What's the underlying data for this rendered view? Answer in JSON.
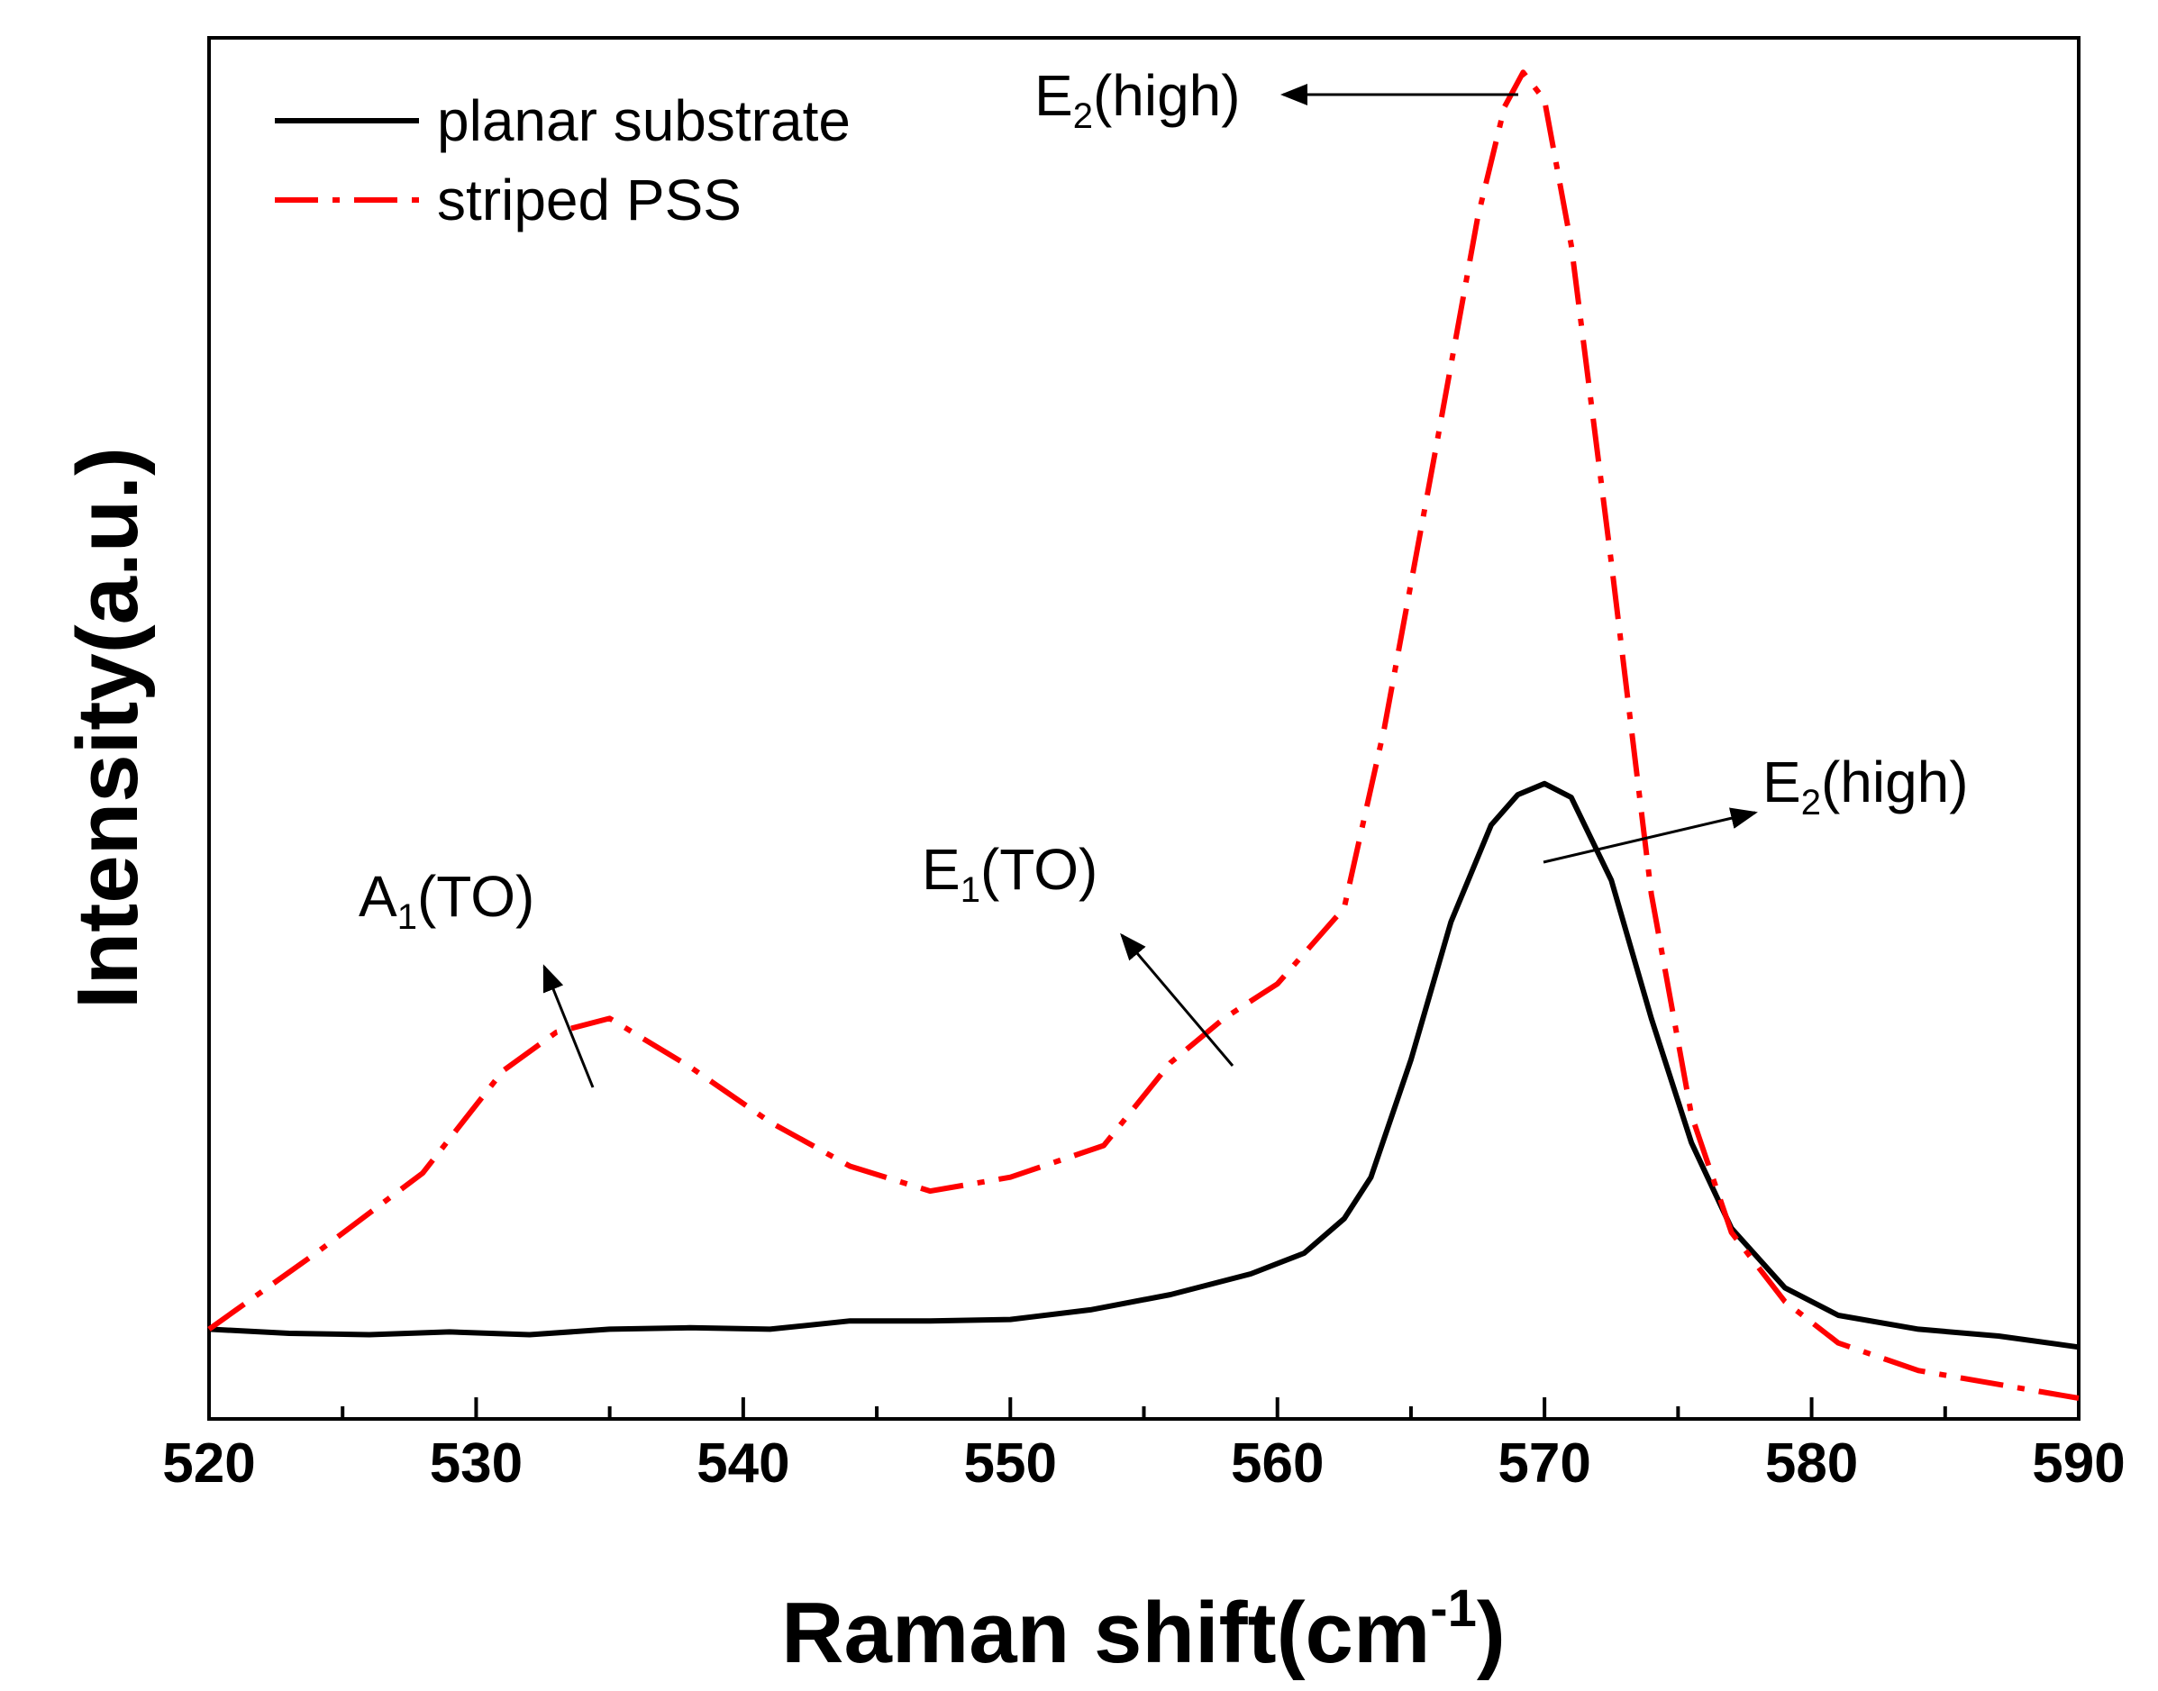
{
  "chart_data": {
    "type": "line",
    "title": "",
    "xlabel": "Raman shift(cm",
    "xlabel_sup": "-1",
    "xlabel_close": ")",
    "ylabel": "Intensity(a.u.)",
    "xlim": [
      520,
      590
    ],
    "ylim": [
      0,
      100
    ],
    "xticks": [
      "520",
      "530",
      "540",
      "550",
      "560",
      "570",
      "580",
      "590"
    ],
    "yticks": [],
    "grid": false,
    "legend_position": "top-left",
    "series": [
      {
        "name": "planar substrate",
        "color": "#000000",
        "style": "solid",
        "x": [
          520,
          523,
          526,
          529,
          532,
          535,
          538,
          541,
          544,
          547,
          550,
          553,
          556,
          559,
          561,
          562.5,
          563.5,
          565,
          566.5,
          568,
          569,
          570,
          571,
          572.5,
          574,
          575.5,
          577,
          579,
          581,
          584,
          587,
          590
        ],
        "y": [
          6.5,
          6.2,
          6.1,
          6.3,
          6.1,
          6.5,
          6.6,
          6.5,
          7.1,
          7.1,
          7.2,
          7.9,
          9.0,
          10.5,
          12.0,
          14.5,
          17.5,
          26.0,
          36.0,
          43.0,
          45.2,
          46.0,
          45.0,
          39.0,
          29.0,
          20.0,
          13.8,
          9.5,
          7.5,
          6.5,
          6.0,
          5.2
        ]
      },
      {
        "name": "striped PSS",
        "color": "#ff0000",
        "style": "dash-dot",
        "x": [
          520,
          524,
          528,
          531,
          533,
          535,
          538,
          541,
          544,
          547,
          550,
          553.5,
          556,
          558,
          560,
          562.5,
          564,
          566,
          567.5,
          568.5,
          569.2,
          570,
          571,
          572.5,
          574,
          575.5,
          577,
          579,
          581,
          584,
          587,
          590
        ],
        "y": [
          6.5,
          12.0,
          17.8,
          25.2,
          28.0,
          29.0,
          25.5,
          21.5,
          18.3,
          16.5,
          17.5,
          19.8,
          25.8,
          29.0,
          31.5,
          37.0,
          50.0,
          71.0,
          87.0,
          95.0,
          97.5,
          95.5,
          85.0,
          62.0,
          38.0,
          22.0,
          13.5,
          8.5,
          5.5,
          3.5,
          2.5,
          1.5
        ]
      }
    ],
    "annotations": [
      {
        "label": "E",
        "sub": "2",
        "tail": "(high)",
        "series": "striped PSS",
        "x": 569.2,
        "y": 97.5
      },
      {
        "label": "E",
        "sub": "2",
        "tail": "(high)",
        "series": "planar substrate",
        "x": 570,
        "y": 46.0
      },
      {
        "label": "E",
        "sub": "1",
        "tail": "(TO)",
        "series": "striped PSS",
        "x": 558,
        "y": 29.0
      },
      {
        "label": "A",
        "sub": "1",
        "tail": "(TO)",
        "series": "striped PSS",
        "x": 534.5,
        "y": 29.0
      }
    ]
  }
}
